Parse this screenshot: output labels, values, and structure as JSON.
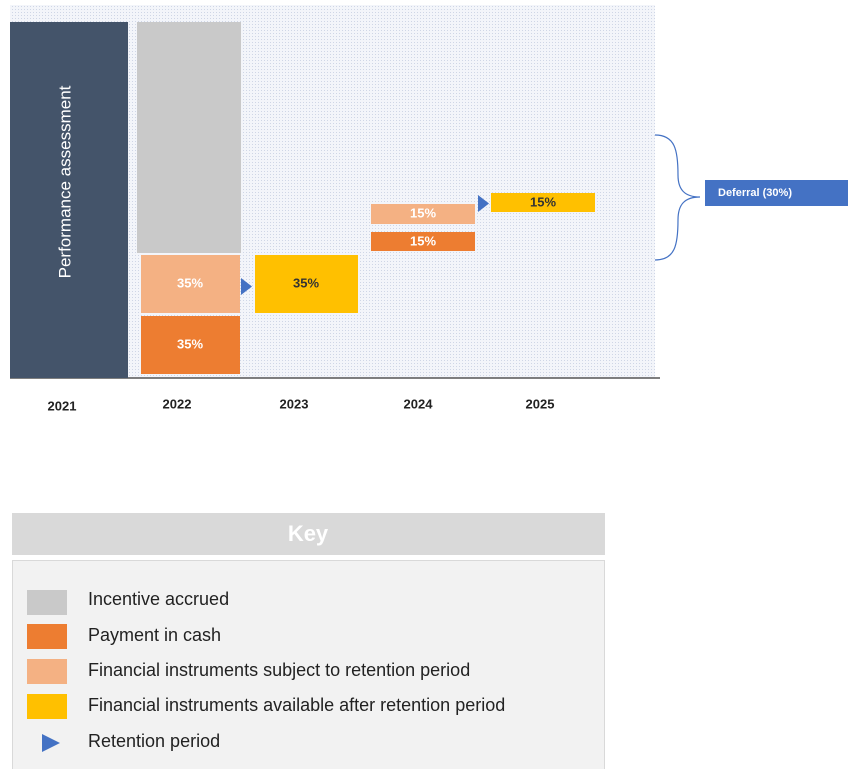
{
  "diagram": {
    "side_label": "Performance assessment",
    "years": [
      "2021",
      "2022",
      "2023",
      "2024",
      "2025"
    ],
    "blocks": {
      "cash_2022": "35%",
      "retention_2022": "35%",
      "available_2023": "35%",
      "retention_2024": "15%",
      "cash_2024": "15%",
      "available_2025": "15%"
    },
    "deferral": "Deferral (30%)"
  },
  "key": {
    "title": "Key",
    "items": [
      "Incentive accrued",
      "Payment in cash",
      "Financial instruments subject to retention period",
      "Financial instruments available after retention period",
      "Retention period"
    ]
  }
}
